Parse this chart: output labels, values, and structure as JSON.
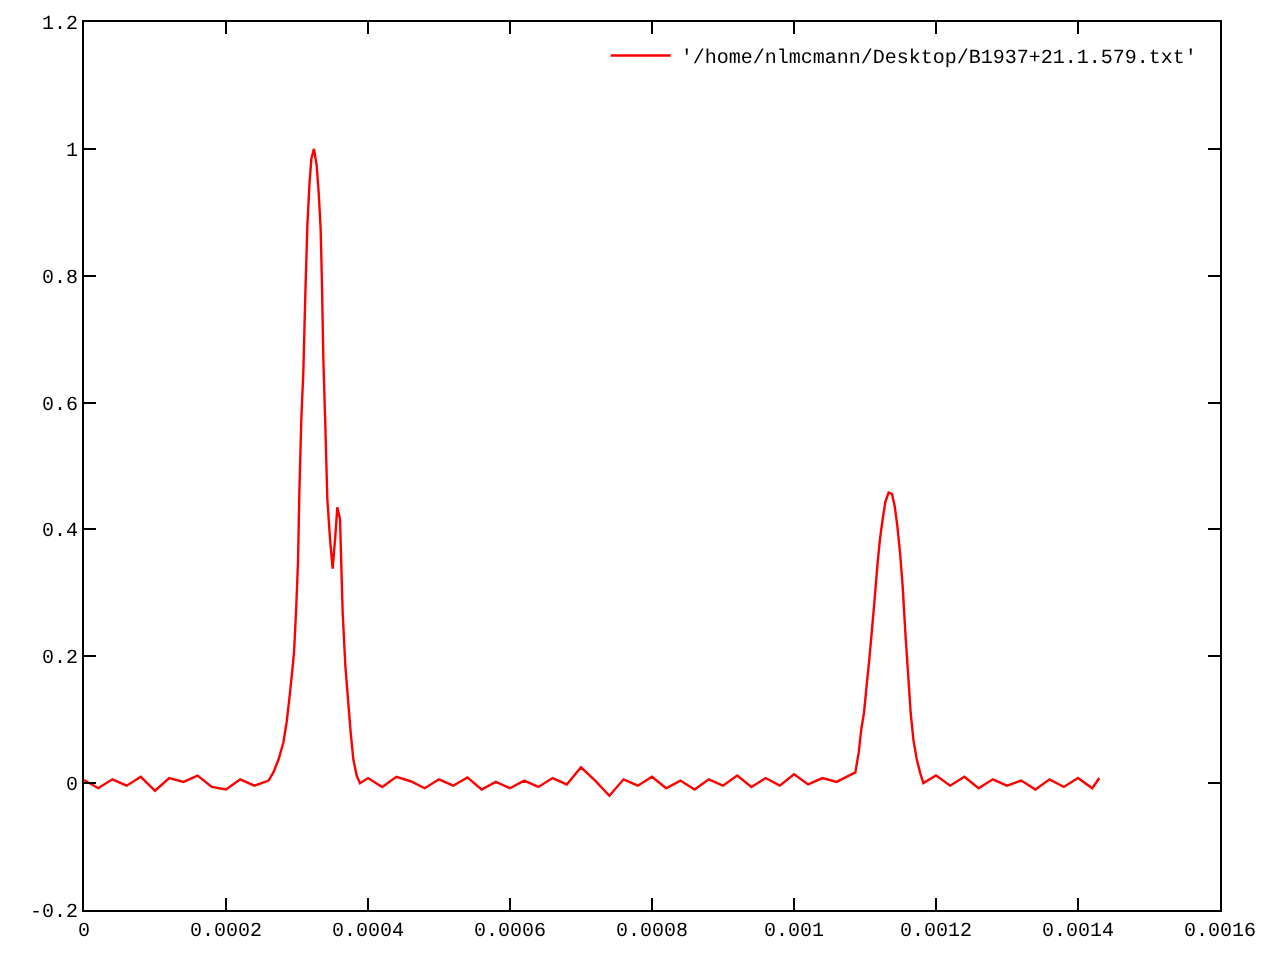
{
  "chart_data": {
    "type": "line",
    "x": [
      0,
      2e-05,
      4e-05,
      6e-05,
      8e-05,
      0.0001,
      0.00012,
      0.00014,
      0.00016,
      0.00018,
      0.0002,
      0.00022,
      0.00024,
      0.00026,
      0.0002667,
      0.0002742,
      0.0002808,
      0.0002854,
      0.0002892,
      0.000293,
      0.0002958,
      0.0002986,
      0.0003014,
      0.0003033,
      0.0003061,
      0.0003089,
      0.0003117,
      0.0003146,
      0.0003174,
      0.0003202,
      0.0003239,
      0.0003277,
      0.0003305,
      0.0003333,
      0.0003352,
      0.0003371,
      0.0003399,
      0.0003427,
      0.0003465,
      0.0003502,
      0.000354,
      0.0003568,
      0.0003606,
      0.0003643,
      0.0003681,
      0.0003718,
      0.0003756,
      0.0003793,
      0.000384,
      0.0003887,
      0.0004,
      0.00042,
      0.00044,
      0.00046,
      0.00048,
      0.0005,
      0.00052,
      0.00054,
      0.00056,
      0.00058,
      0.0006,
      0.00062,
      0.00064,
      0.00066,
      0.00068,
      0.0007,
      0.00072,
      0.00074,
      0.00076,
      0.00078,
      0.0008,
      0.00082,
      0.00084,
      0.00086,
      0.00088,
      0.0009,
      0.00092,
      0.00094,
      0.00096,
      0.00098,
      0.001,
      0.00102,
      0.00104,
      0.00106,
      0.0010864,
      0.0010911,
      0.0010948,
      0.0010986,
      0.0011023,
      0.0011061,
      0.0011099,
      0.0011136,
      0.0011174,
      0.0011211,
      0.0011249,
      0.0011286,
      0.0011333,
      0.001138,
      0.0011418,
      0.0011455,
      0.0011493,
      0.001153,
      0.0011568,
      0.0011606,
      0.0011643,
      0.0011681,
      0.0011728,
      0.0011775,
      0.0011822,
      0.0012,
      0.00122,
      0.00124,
      0.00126,
      0.00128,
      0.0013,
      0.00132,
      0.00134,
      0.00136,
      0.00138,
      0.0014,
      0.00142,
      0.00143
    ],
    "series": [
      {
        "name": "'/home/nlmcmann/Desktop/B1937+21.1.579.txt'",
        "color": "#ff0000",
        "values": [
          0.005,
          -0.008,
          0.006,
          -0.004,
          0.01,
          -0.012,
          0.008,
          0.002,
          0.012,
          -0.006,
          -0.01,
          0.006,
          -0.004,
          0.004,
          0.017,
          0.038,
          0.064,
          0.096,
          0.133,
          0.174,
          0.206,
          0.269,
          0.348,
          0.458,
          0.574,
          0.648,
          0.769,
          0.879,
          0.942,
          0.984,
          1.0,
          0.974,
          0.932,
          0.874,
          0.785,
          0.669,
          0.564,
          0.448,
          0.385,
          0.338,
          0.39,
          0.435,
          0.416,
          0.269,
          0.185,
          0.133,
          0.08,
          0.038,
          0.012,
          0.0,
          0.008,
          -0.006,
          0.01,
          0.003,
          -0.008,
          0.006,
          -0.004,
          0.009,
          -0.01,
          0.002,
          -0.008,
          0.004,
          -0.006,
          0.008,
          -0.002,
          0.025,
          0.004,
          -0.02,
          0.006,
          -0.004,
          0.01,
          -0.008,
          0.004,
          -0.01,
          0.006,
          -0.004,
          0.012,
          -0.006,
          0.008,
          -0.004,
          0.014,
          -0.002,
          0.008,
          0.002,
          0.017,
          0.048,
          0.085,
          0.111,
          0.154,
          0.196,
          0.243,
          0.29,
          0.343,
          0.385,
          0.416,
          0.443,
          0.458,
          0.456,
          0.437,
          0.406,
          0.364,
          0.311,
          0.238,
          0.174,
          0.111,
          0.069,
          0.038,
          0.017,
          0.0,
          0.012,
          -0.004,
          0.01,
          -0.008,
          0.006,
          -0.004,
          0.004,
          -0.01,
          0.006,
          -0.006,
          0.008,
          -0.008,
          0.008
        ]
      }
    ],
    "xlim": [
      0,
      0.0016
    ],
    "xticks": [
      0,
      0.0002,
      0.0004,
      0.0006,
      0.0008,
      0.001,
      0.0012,
      0.0014,
      0.0016
    ],
    "ylim": [
      -0.2,
      1.2
    ],
    "yticks": [
      -0.2,
      0,
      0.2,
      0.4,
      0.6,
      0.8,
      1,
      1.2
    ],
    "legend": "top right",
    "line_style": "solid"
  }
}
